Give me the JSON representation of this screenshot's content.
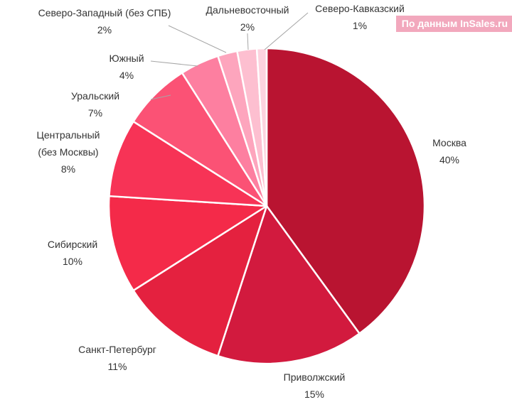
{
  "source_note": "По данным InSales.ru",
  "chart_data": {
    "type": "pie",
    "title": "",
    "unit": "%",
    "slices": [
      {
        "id": "moskva",
        "label_lines": [
          "Москва"
        ],
        "value_label": "40%",
        "value": 40,
        "color": "#b91431"
      },
      {
        "id": "privolzhsky",
        "label_lines": [
          "Приволжский"
        ],
        "value_label": "15%",
        "value": 15,
        "color": "#d21a3e"
      },
      {
        "id": "spb",
        "label_lines": [
          "Санкт-Петербург"
        ],
        "value_label": "11%",
        "value": 11,
        "color": "#e4213f"
      },
      {
        "id": "sibirsky",
        "label_lines": [
          "Сибирский"
        ],
        "value_label": "10%",
        "value": 10,
        "color": "#f42a49"
      },
      {
        "id": "centralny",
        "label_lines": [
          "Центральный",
          "(без Москвы)"
        ],
        "value_label": "8%",
        "value": 8,
        "color": "#f73356"
      },
      {
        "id": "uralsky",
        "label_lines": [
          "Уральский"
        ],
        "value_label": "7%",
        "value": 7,
        "color": "#fb5275"
      },
      {
        "id": "yuzhny",
        "label_lines": [
          "Южный"
        ],
        "value_label": "4%",
        "value": 4,
        "color": "#fd7fa0"
      },
      {
        "id": "severo-zapadny",
        "label_lines": [
          "Северо-Западный (без СПБ)"
        ],
        "value_label": "2%",
        "value": 2,
        "color": "#fda5bd"
      },
      {
        "id": "dalnevostochny",
        "label_lines": [
          "Дальневосточный"
        ],
        "value_label": "2%",
        "value": 2,
        "color": "#fdbfd0"
      },
      {
        "id": "severo-kavkazsky",
        "label_lines": [
          "Северо-Кавказский"
        ],
        "value_label": "1%",
        "value": 1,
        "color": "#fdd3df"
      }
    ]
  }
}
